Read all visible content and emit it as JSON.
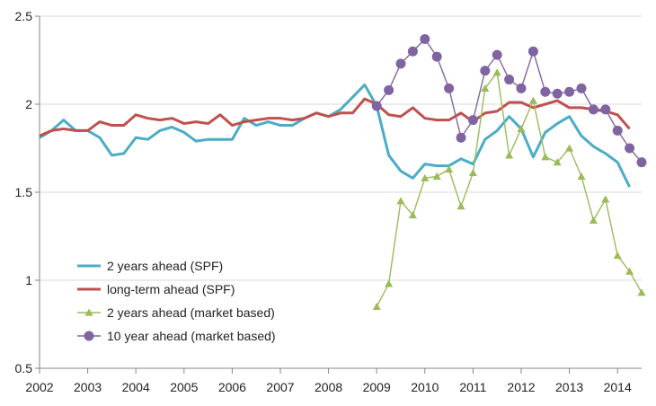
{
  "chart_data": {
    "type": "line",
    "title": "",
    "xlabel": "",
    "ylabel": "",
    "xlim": [
      2002,
      2014.5
    ],
    "ylim": [
      0.5,
      2.5
    ],
    "x_ticks": [
      "2002",
      "2003",
      "2004",
      "2005",
      "2006",
      "2007",
      "2008",
      "2009",
      "2010",
      "2011",
      "2012",
      "2013",
      "2014"
    ],
    "y_ticks": [
      "0.5",
      "1",
      "1.5",
      "2",
      "2.5"
    ],
    "grid": true,
    "legend_position": "bottom-left",
    "series": [
      {
        "name": "2 years ahead (SPF)",
        "color": "#4BACC6",
        "marker": "none",
        "x": [
          2002.0,
          2002.25,
          2002.5,
          2002.75,
          2003.0,
          2003.25,
          2003.5,
          2003.75,
          2004.0,
          2004.25,
          2004.5,
          2004.75,
          2005.0,
          2005.25,
          2005.5,
          2005.75,
          2006.0,
          2006.25,
          2006.5,
          2006.75,
          2007.0,
          2007.25,
          2007.5,
          2007.75,
          2008.0,
          2008.25,
          2008.5,
          2008.75,
          2009.0,
          2009.25,
          2009.5,
          2009.75,
          2010.0,
          2010.25,
          2010.5,
          2010.75,
          2011.0,
          2011.25,
          2011.5,
          2011.75,
          2012.0,
          2012.25,
          2012.5,
          2012.75,
          2013.0,
          2013.25,
          2013.5,
          2013.75,
          2014.0,
          2014.25
        ],
        "values": [
          1.81,
          1.85,
          1.91,
          1.85,
          1.85,
          1.81,
          1.71,
          1.72,
          1.81,
          1.8,
          1.85,
          1.87,
          1.84,
          1.79,
          1.8,
          1.8,
          1.8,
          1.92,
          1.88,
          1.9,
          1.88,
          1.88,
          1.92,
          1.95,
          1.93,
          1.97,
          2.04,
          2.11,
          1.99,
          1.71,
          1.62,
          1.58,
          1.66,
          1.65,
          1.65,
          1.69,
          1.66,
          1.8,
          1.85,
          1.93,
          1.86,
          1.7,
          1.84,
          1.89,
          1.93,
          1.82,
          1.76,
          1.72,
          1.67,
          1.53
        ]
      },
      {
        "name": "long-term ahead (SPF)",
        "color": "#C0504D",
        "marker": "none",
        "x": [
          2002.0,
          2002.25,
          2002.5,
          2002.75,
          2003.0,
          2003.25,
          2003.5,
          2003.75,
          2004.0,
          2004.25,
          2004.5,
          2004.75,
          2005.0,
          2005.25,
          2005.5,
          2005.75,
          2006.0,
          2006.25,
          2006.5,
          2006.75,
          2007.0,
          2007.25,
          2007.5,
          2007.75,
          2008.0,
          2008.25,
          2008.5,
          2008.75,
          2009.0,
          2009.25,
          2009.5,
          2009.75,
          2010.0,
          2010.25,
          2010.5,
          2010.75,
          2011.0,
          2011.25,
          2011.5,
          2011.75,
          2012.0,
          2012.25,
          2012.5,
          2012.75,
          2013.0,
          2013.25,
          2013.5,
          2013.75,
          2014.0,
          2014.25
        ],
        "values": [
          1.82,
          1.85,
          1.86,
          1.85,
          1.85,
          1.9,
          1.88,
          1.88,
          1.94,
          1.92,
          1.91,
          1.92,
          1.89,
          1.9,
          1.89,
          1.94,
          1.88,
          1.9,
          1.91,
          1.92,
          1.92,
          1.91,
          1.92,
          1.95,
          1.93,
          1.95,
          1.95,
          2.03,
          2.0,
          1.94,
          1.93,
          1.98,
          1.92,
          1.91,
          1.91,
          1.95,
          1.9,
          1.95,
          1.96,
          2.01,
          2.01,
          1.98,
          2.0,
          2.02,
          1.98,
          1.98,
          1.97,
          1.96,
          1.94,
          1.86
        ]
      },
      {
        "name": "2 years ahead (market based)",
        "color": "#9BBB59",
        "marker": "triangle",
        "x": [
          2009.0,
          2009.25,
          2009.5,
          2009.75,
          2010.0,
          2010.25,
          2010.5,
          2010.75,
          2011.0,
          2011.25,
          2011.5,
          2011.75,
          2012.0,
          2012.25,
          2012.5,
          2012.75,
          2013.0,
          2013.25,
          2013.5,
          2013.75,
          2014.0,
          2014.25,
          2014.5
        ],
        "values": [
          0.85,
          0.98,
          1.45,
          1.37,
          1.58,
          1.59,
          1.63,
          1.42,
          1.61,
          2.09,
          2.18,
          1.71,
          1.86,
          2.02,
          1.7,
          1.67,
          1.75,
          1.59,
          1.34,
          1.46,
          1.14,
          1.05,
          0.93
        ]
      },
      {
        "name": "10 year ahead (market based)",
        "color": "#8064A2",
        "marker": "circle",
        "x": [
          2009.0,
          2009.25,
          2009.5,
          2009.75,
          2010.0,
          2010.25,
          2010.5,
          2010.75,
          2011.0,
          2011.25,
          2011.5,
          2011.75,
          2012.0,
          2012.25,
          2012.5,
          2012.75,
          2013.0,
          2013.25,
          2013.5,
          2013.75,
          2014.0,
          2014.25,
          2014.5
        ],
        "values": [
          1.99,
          2.08,
          2.23,
          2.3,
          2.37,
          2.27,
          2.09,
          1.81,
          1.91,
          2.19,
          2.28,
          2.14,
          2.09,
          2.3,
          2.07,
          2.06,
          2.07,
          2.09,
          1.97,
          1.97,
          1.85,
          1.75,
          1.67
        ]
      }
    ]
  }
}
